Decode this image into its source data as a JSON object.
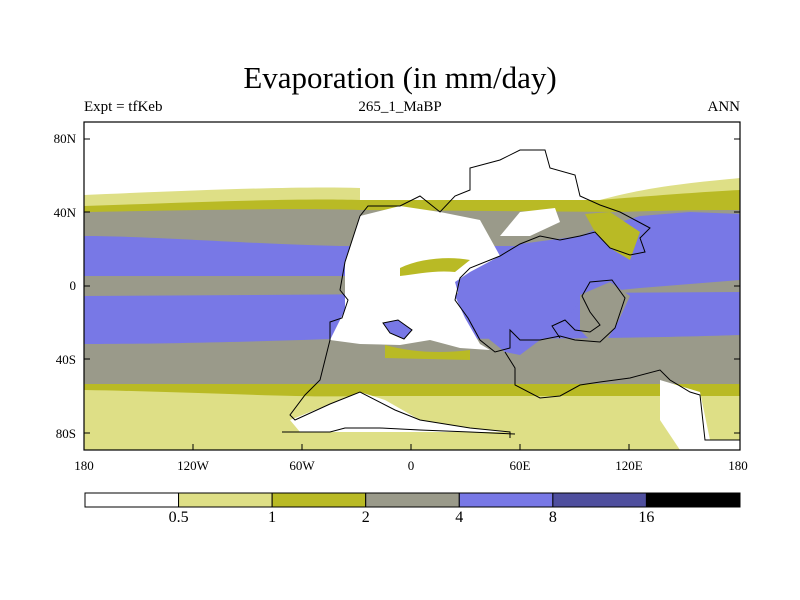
{
  "chart_data": {
    "type": "heatmap",
    "title": "Evaporation (in mm/day)",
    "left_string": "Expt = tfKeb",
    "center_string": "265_1_MaBP",
    "right_string": "ANN",
    "lat_ticks": [
      "80N",
      "40N",
      "0",
      "40S",
      "80S"
    ],
    "lon_ticks": [
      "180",
      "120W",
      "60W",
      "0",
      "60E",
      "120E",
      "180"
    ],
    "colorbar": {
      "levels": [
        "0.5",
        "1",
        "2",
        "4",
        "8",
        "16"
      ],
      "colors": [
        "#ffffff",
        "#dedf86",
        "#b9ba25",
        "#9a9a8a",
        "#7878e6",
        "#4f4f9e",
        "#000000"
      ]
    },
    "zonal_bands_ocean": [
      {
        "lat_from": 90,
        "lat_to": 62,
        "value_range": "<0.5"
      },
      {
        "lat_from": 62,
        "lat_to": 55,
        "value_range": "0.5-1"
      },
      {
        "lat_from": 55,
        "lat_to": 45,
        "value_range": "1-2"
      },
      {
        "lat_from": 45,
        "lat_to": 27,
        "value_range": "2-4"
      },
      {
        "lat_from": 27,
        "lat_to": 5,
        "value_range": "4-8"
      },
      {
        "lat_from": 5,
        "lat_to": -5,
        "value_range": "2-4"
      },
      {
        "lat_from": -5,
        "lat_to": -25,
        "value_range": "4-8"
      },
      {
        "lat_from": -25,
        "lat_to": -44,
        "value_range": "2-4"
      },
      {
        "lat_from": -44,
        "lat_to": -56,
        "value_range": "1-2"
      },
      {
        "lat_from": -56,
        "lat_to": -63,
        "value_range": "0.5-1"
      },
      {
        "lat_from": -63,
        "lat_to": -90,
        "value_range": "<0.5"
      }
    ]
  }
}
